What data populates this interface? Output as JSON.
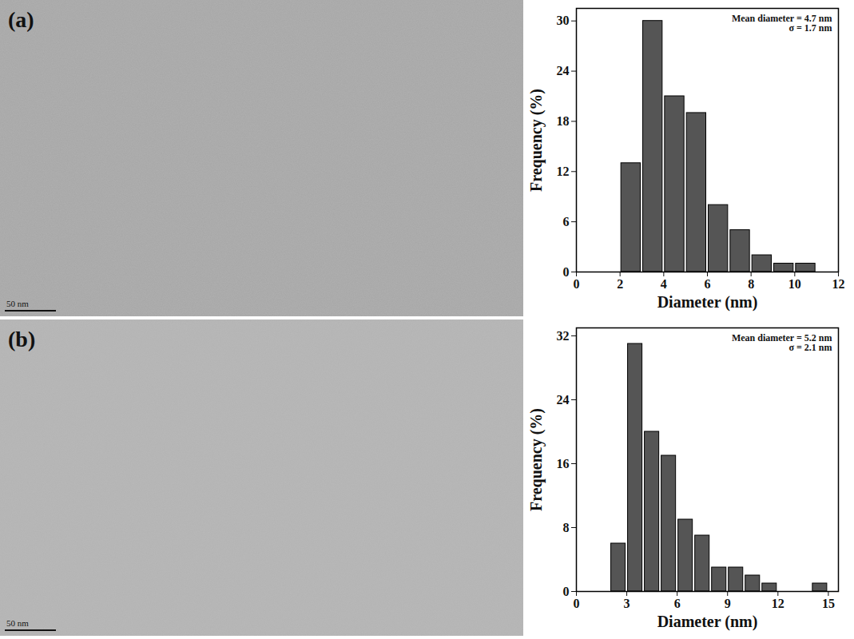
{
  "chart_data": [
    {
      "type": "histogram",
      "bins": [
        2,
        3,
        4,
        5,
        6,
        7,
        8,
        9,
        10,
        11
      ],
      "values": [
        13,
        30,
        21,
        19,
        8,
        5,
        2,
        1,
        1
      ],
      "color": "#555555",
      "x_label": "Diameter (nm)",
      "y_label": "Frequency (%)",
      "xlim": [
        0,
        12
      ],
      "xticks": [
        0,
        2,
        4,
        6,
        8,
        10,
        12
      ],
      "ylim": [
        0,
        31.5
      ],
      "yticks": [
        0,
        6,
        12,
        18,
        24,
        30
      ],
      "annotations": [
        "Mean diameter = 4.7 nm",
        "σ = 1.7 nm"
      ]
    },
    {
      "type": "histogram",
      "bins": [
        2,
        3,
        4,
        5,
        6,
        7,
        8,
        9,
        10,
        11,
        12,
        13,
        14,
        15
      ],
      "values": [
        6,
        31,
        20,
        17,
        9,
        7,
        3,
        3,
        2,
        1,
        0,
        0,
        1
      ],
      "color": "#555555",
      "x_label": "Diameter (nm)",
      "y_label": "Frequency (%)",
      "xlim": [
        0,
        15.6
      ],
      "xticks": [
        0,
        3,
        6,
        9,
        12,
        15
      ],
      "ylim": [
        0,
        33
      ],
      "yticks": [
        0,
        8,
        16,
        24,
        32
      ],
      "annotations": [
        "Mean diameter = 5.2 nm",
        "σ = 2.1 nm"
      ]
    }
  ],
  "micrographs": [
    {
      "label": "(a)",
      "scale_bar": "50 nm"
    },
    {
      "label": "(b)",
      "scale_bar": "50 nm"
    }
  ]
}
